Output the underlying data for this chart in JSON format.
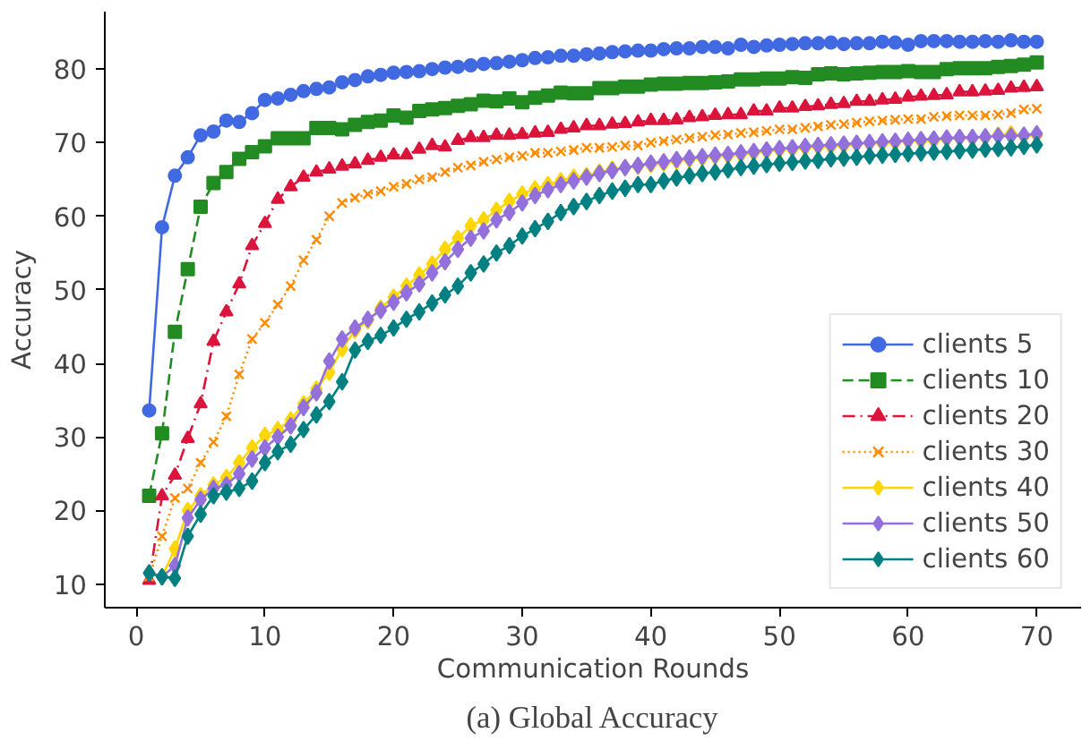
{
  "chart_data": {
    "type": "line",
    "xlabel": "Communication Rounds",
    "ylabel": "Accuracy",
    "annotations": [
      "(a) Global Accuracy"
    ],
    "x": [
      1,
      2,
      3,
      4,
      5,
      6,
      7,
      8,
      9,
      10,
      11,
      12,
      13,
      14,
      15,
      16,
      17,
      18,
      19,
      20,
      21,
      22,
      23,
      24,
      25,
      26,
      27,
      28,
      29,
      30,
      31,
      32,
      33,
      34,
      35,
      36,
      37,
      38,
      39,
      40,
      41,
      42,
      43,
      44,
      45,
      46,
      47,
      48,
      49,
      50,
      51,
      52,
      53,
      54,
      55,
      56,
      57,
      58,
      59,
      60,
      61,
      62,
      63,
      64,
      65,
      66,
      67,
      68,
      69,
      70
    ],
    "xlim": [
      -2.45,
      73.45
    ],
    "ylim": [
      6.8,
      87.8
    ],
    "xticks": [
      0,
      10,
      20,
      30,
      40,
      50,
      60,
      70
    ],
    "yticks": [
      10,
      20,
      30,
      40,
      50,
      60,
      70,
      80
    ],
    "grid": false,
    "legend": "bottom right",
    "series": [
      {
        "name": "clients 5",
        "color": "#4169e1",
        "marker": "circle",
        "line_style": "solid",
        "values": [
          33.6,
          58.5,
          65.5,
          68,
          71,
          71.5,
          73,
          72.8,
          74,
          75.8,
          76,
          76.5,
          77,
          77.3,
          77.5,
          78.2,
          78.5,
          79,
          79.2,
          79.5,
          79.6,
          79.7,
          80,
          80.2,
          80.3,
          80.5,
          80.7,
          80.8,
          81,
          81.2,
          81.5,
          81.6,
          81.8,
          81.8,
          82,
          82.1,
          82.3,
          82.4,
          82.5,
          82.5,
          82.7,
          82.8,
          82.8,
          83,
          83,
          82.8,
          83.3,
          83,
          83.2,
          83.3,
          83.4,
          83.5,
          83.5,
          83.6,
          83.4,
          83.5,
          83.5,
          83.7,
          83.6,
          83.3,
          83.8,
          83.8,
          83.8,
          83.7,
          83.7,
          83.8,
          83.7,
          83.9,
          83.7,
          83.7
        ]
      },
      {
        "name": "clients 10",
        "color": "#228b22",
        "marker": "square",
        "line_style": "dashed",
        "values": [
          22,
          30.5,
          44.3,
          52.8,
          61.3,
          64.5,
          66,
          67.8,
          68.7,
          69.5,
          70.6,
          70.6,
          70.6,
          72,
          72,
          71.8,
          72.4,
          72.8,
          73,
          73.7,
          73.4,
          74.3,
          74.5,
          74.7,
          75,
          75.2,
          75.7,
          75.6,
          76,
          75.5,
          76.1,
          76.4,
          76.8,
          76.7,
          76.7,
          77.4,
          77.4,
          77.6,
          77.6,
          77.9,
          78,
          78,
          78.1,
          78.1,
          78.2,
          78.3,
          78.6,
          78.6,
          78.7,
          78.7,
          78.9,
          78.8,
          79.3,
          79.4,
          79.3,
          79.4,
          79.5,
          79.6,
          79.6,
          79.7,
          79.6,
          79.6,
          80,
          80.1,
          80.1,
          80.1,
          80.3,
          80.4,
          80.6,
          80.9
        ]
      },
      {
        "name": "clients 20",
        "color": "#dc143c",
        "marker": "triangle",
        "line_style": "dashdot",
        "values": [
          10.5,
          22,
          24.8,
          29.8,
          34.5,
          43,
          47,
          50.8,
          56,
          59,
          62.3,
          64,
          65.3,
          66,
          66.4,
          66.8,
          67.1,
          67.6,
          68,
          68.3,
          68.3,
          69.1,
          69.6,
          69.4,
          70.3,
          70.7,
          70.7,
          71,
          71,
          71.1,
          71.3,
          71.4,
          71.8,
          72,
          72.3,
          72.3,
          72.5,
          72.6,
          72.8,
          73,
          73,
          73.1,
          73.4,
          73.5,
          73.7,
          73.8,
          73.8,
          74.3,
          74.3,
          74.7,
          74.7,
          74.9,
          75,
          75.2,
          75.3,
          75.6,
          75.6,
          75.8,
          75.9,
          76.2,
          76.3,
          76.4,
          76.5,
          76.9,
          76.9,
          77,
          77.1,
          77.4,
          77.5,
          77.6
        ]
      },
      {
        "name": "clients 30",
        "color": "#ff8c00",
        "marker": "cross",
        "line_style": "dotted",
        "values": [
          11,
          16.5,
          21.7,
          23,
          26.5,
          29.3,
          32.8,
          38.5,
          43.3,
          45.5,
          48,
          50.5,
          54,
          56.8,
          60,
          61.8,
          62.5,
          63,
          63.4,
          64,
          64.4,
          65,
          65.3,
          66,
          66.6,
          66.9,
          67.4,
          67.7,
          68,
          68.2,
          68.6,
          68.6,
          68.8,
          69,
          69.3,
          69.3,
          69.4,
          69.6,
          69.6,
          70,
          70.2,
          70.4,
          70.6,
          70.8,
          71,
          71.1,
          71.3,
          71.4,
          71.6,
          71.8,
          71.8,
          72,
          72.2,
          72.4,
          72.5,
          72.7,
          72.9,
          73,
          73.1,
          73.2,
          73.2,
          73.5,
          73.6,
          73.7,
          73.7,
          73.7,
          73.8,
          74,
          74.5,
          74.6
        ]
      },
      {
        "name": "clients 40",
        "color": "#ffd700",
        "marker": "diamond",
        "line_style": "solid",
        "values": [
          11.5,
          11,
          14.8,
          20,
          22,
          23.5,
          24.5,
          26.5,
          28.5,
          30.2,
          31,
          32.3,
          34.5,
          36.5,
          38.8,
          42,
          44.5,
          45.8,
          47.5,
          49,
          50.5,
          52,
          53.5,
          55.5,
          57,
          58.7,
          59.5,
          60.8,
          62,
          63,
          63.7,
          64.3,
          64.8,
          65.3,
          65.5,
          66,
          66.4,
          66.6,
          66.8,
          67,
          67.2,
          67.5,
          67.7,
          67.9,
          68.1,
          68.2,
          68.4,
          68.6,
          68.8,
          69,
          69.1,
          69.3,
          69.4,
          69.5,
          69.6,
          69.8,
          69.9,
          69.9,
          70,
          70.2,
          70.2,
          70.3,
          70.5,
          70.6,
          70.6,
          70.7,
          71,
          71.2,
          70.9,
          71
        ]
      },
      {
        "name": "clients 50",
        "color": "#9370db",
        "marker": "diamond",
        "line_style": "solid",
        "values": [
          11.5,
          11,
          12.5,
          19,
          21.5,
          23,
          23.5,
          25,
          27,
          28.5,
          30,
          31.5,
          34,
          36,
          40.3,
          43.3,
          44.8,
          46,
          47.2,
          48.3,
          49.6,
          50.8,
          52.3,
          53.8,
          55.5,
          57,
          58,
          59.5,
          60.5,
          61.8,
          62.8,
          63.6,
          64.3,
          64.8,
          65.3,
          65.8,
          66.2,
          66.6,
          66.9,
          67.2,
          67.4,
          67.7,
          67.9,
          68.1,
          68.3,
          68.4,
          68.6,
          68.8,
          69,
          69.2,
          69.3,
          69.5,
          69.6,
          69.7,
          69.8,
          69.9,
          70,
          70.1,
          70.2,
          70.3,
          70.4,
          70.5,
          70.6,
          70.7,
          70.7,
          70.8,
          70.9,
          70.9,
          71,
          71.2
        ]
      },
      {
        "name": "clients 60",
        "color": "#008080",
        "marker": "diamond",
        "line_style": "solid",
        "values": [
          11.5,
          11,
          10.8,
          16.5,
          19.5,
          22,
          22.5,
          23,
          24,
          26.5,
          28,
          29,
          31,
          33,
          34.8,
          37.5,
          41.8,
          43,
          43.8,
          44.8,
          46,
          47,
          48.2,
          49.3,
          50.5,
          52.3,
          53.5,
          55,
          56,
          57.3,
          58.3,
          59.3,
          60.5,
          61.3,
          62,
          62.8,
          63.4,
          63.8,
          64.3,
          64.3,
          64.8,
          65.2,
          65.5,
          65.8,
          66,
          66.3,
          66.6,
          66.8,
          67,
          67.2,
          67.3,
          67.5,
          67.6,
          67.8,
          67.9,
          68,
          68.2,
          68.3,
          68.4,
          68.5,
          68.6,
          68.7,
          68.8,
          68.9,
          69,
          69.1,
          69.2,
          69.3,
          69.5,
          69.7
        ]
      }
    ]
  }
}
